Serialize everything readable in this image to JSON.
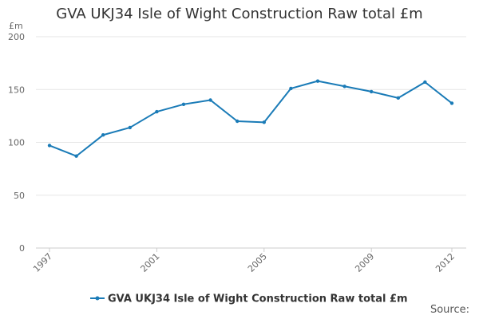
{
  "title": "GVA UKJ34 Isle of Wight Construction Raw total £m",
  "source_label": "Source:",
  "colors": {
    "series": "#1a7bb7",
    "grid": "#e6e6e6",
    "axis": "#cccccc"
  },
  "chart_data": {
    "type": "line",
    "title": "GVA UKJ34 Isle of Wight Construction Raw total £m",
    "xlabel": "",
    "ylabel": "",
    "y_unit": "£m",
    "x": [
      1997,
      1998,
      1999,
      2000,
      2001,
      2002,
      2003,
      2004,
      2005,
      2006,
      2007,
      2008,
      2009,
      2010,
      2011,
      2012
    ],
    "x_ticks": [
      "1997",
      "2001",
      "2005",
      "2009",
      "2012"
    ],
    "y_ticks": [
      "0",
      "50",
      "100",
      "150",
      "200"
    ],
    "ylim": [
      0,
      200
    ],
    "grid": true,
    "legend_position": "bottom",
    "series": [
      {
        "name": "GVA UKJ34 Isle of Wight Construction Raw total £m",
        "values": [
          97,
          87,
          107,
          114,
          129,
          136,
          140,
          120,
          119,
          151,
          158,
          153,
          148,
          142,
          157,
          137
        ]
      }
    ]
  }
}
